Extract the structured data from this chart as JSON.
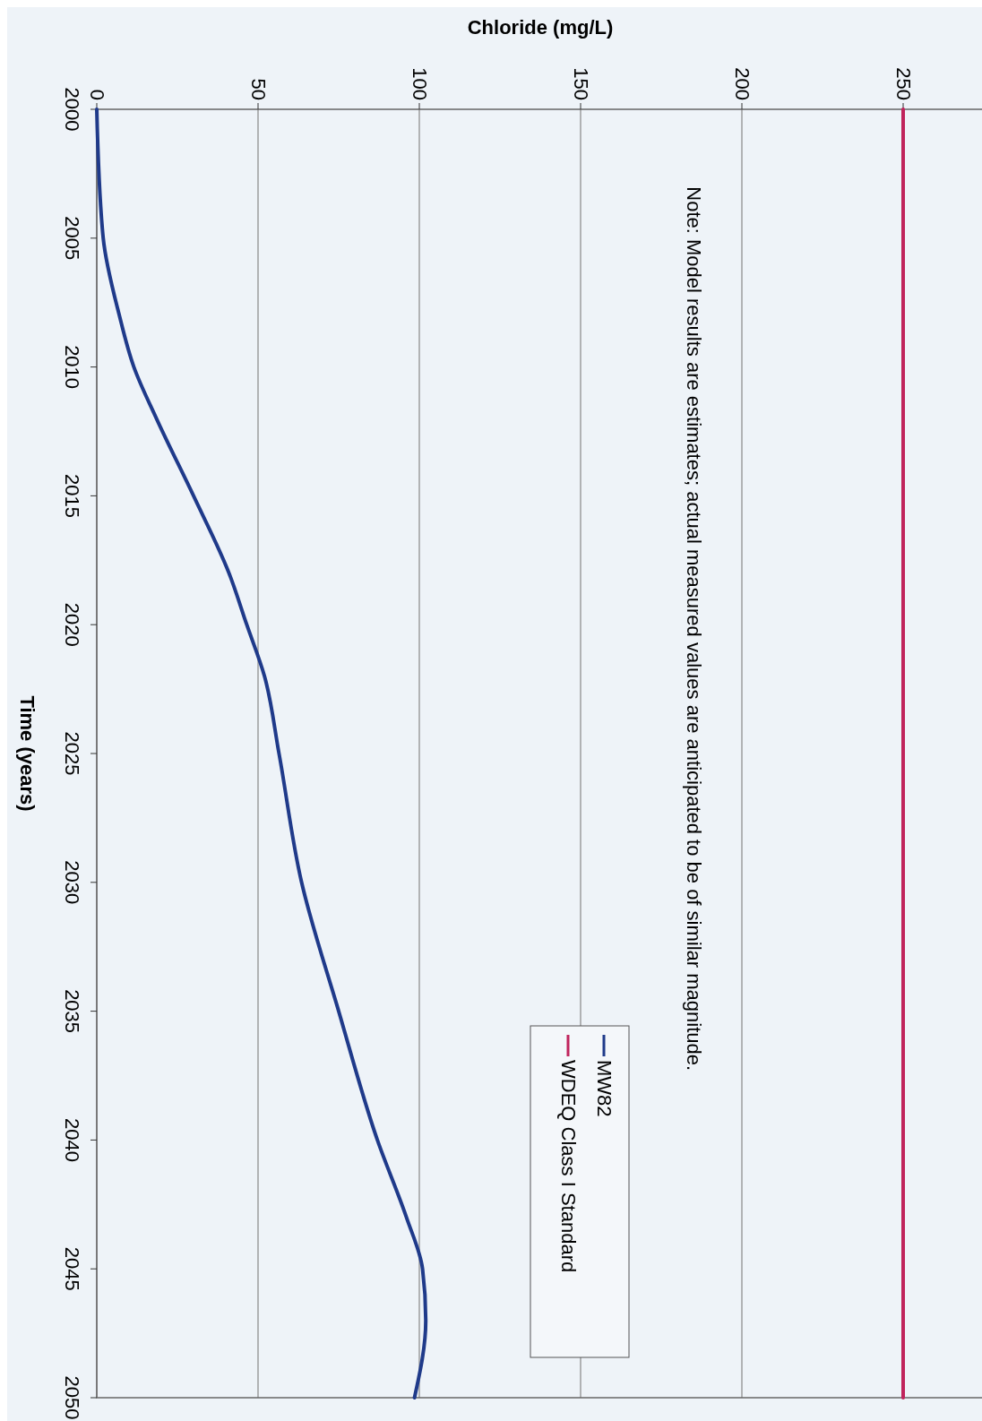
{
  "chart_data": {
    "type": "line",
    "xlabel": "Chloride (mg/L)",
    "ylabel": "Time (years)",
    "xlim": [
      0,
      275
    ],
    "xticks": [
      0,
      50,
      100,
      150,
      200,
      250
    ],
    "ylim": [
      2050,
      2000
    ],
    "yticks": [
      2000,
      2005,
      2010,
      2015,
      2020,
      2025,
      2030,
      2035,
      2040,
      2045,
      2050
    ],
    "grid": "x",
    "legend": "bottom",
    "annotations": [
      "Note:  Model results are estimates; actual measured values are anticipated to be of similar magnitude."
    ],
    "series": [
      {
        "name": "MW82",
        "color": "#1f3a8a",
        "x": [
          0,
          2,
          7,
          11.5,
          18.5,
          30,
          41,
          46.5,
          52,
          56.5,
          63.5,
          75,
          87,
          96,
          101,
          102,
          98.5
        ],
        "values": [
          2000,
          2005,
          2008,
          2010,
          2012,
          2015,
          2018,
          2020,
          2022,
          2025,
          2030,
          2035,
          2040,
          2043,
          2045,
          2047,
          2050
        ]
      },
      {
        "name": "WDEQ Class I Standard",
        "color": "#c0245c",
        "x": [
          250,
          250
        ],
        "values": [
          2000,
          2050
        ]
      }
    ]
  }
}
